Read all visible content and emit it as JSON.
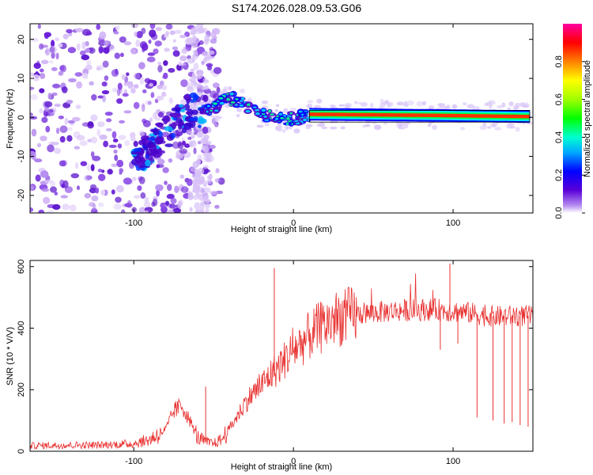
{
  "title": "S174.2026.028.09.53.G06",
  "chart_data": [
    {
      "type": "heatmap",
      "xlabel": "Height of straight line (km)",
      "ylabel": "Frequency (Hz)",
      "xlim": [
        -165,
        150
      ],
      "ylim": [
        -24.5,
        24
      ],
      "xticks": [
        -100,
        0,
        100
      ],
      "yticks": [
        -20,
        -10,
        0,
        10,
        20
      ],
      "colorbar": {
        "label": "Normalized spectral amplitude",
        "range": [
          0,
          1
        ],
        "ticks": [
          "0.0",
          "0.2",
          "0.4",
          "0.6",
          "0.8"
        ]
      },
      "ridge": [
        {
          "x": -95,
          "y": -10
        },
        {
          "x": -80,
          "y": -4
        },
        {
          "x": -65,
          "y": 2
        },
        {
          "x": -55,
          "y": 1
        },
        {
          "x": -40,
          "y": 5
        },
        {
          "x": -30,
          "y": 3
        },
        {
          "x": -20,
          "y": 1
        },
        {
          "x": -10,
          "y": 0
        },
        {
          "x": 0,
          "y": -0.5
        },
        {
          "x": 10,
          "y": 0.8
        },
        {
          "x": 90,
          "y": 0.5
        },
        {
          "x": 148,
          "y": 0.2
        }
      ]
    },
    {
      "type": "line",
      "xlabel": "Height of straight line (km)",
      "ylabel": "SNR (10 * V/V)",
      "xlim": [
        -165,
        150
      ],
      "ylim": [
        0,
        620
      ],
      "xticks": [
        -100,
        0,
        100
      ],
      "yticks": [
        0,
        200,
        400,
        600
      ],
      "color": "#e8302f",
      "series": [
        {
          "name": "SNR",
          "x": [
            -165,
            -140,
            -120,
            -100,
            -90,
            -80,
            -75,
            -70,
            -65,
            -60,
            -55,
            -50,
            -45,
            -40,
            -35,
            -30,
            -25,
            -20,
            -15,
            -10,
            -5,
            0,
            5,
            10,
            15,
            20,
            25,
            30,
            40,
            50,
            60,
            70,
            80,
            90,
            100,
            110,
            115,
            120,
            130,
            140,
            150
          ],
          "values": [
            18,
            20,
            20,
            25,
            38,
            70,
            130,
            150,
            100,
            45,
            30,
            25,
            38,
            75,
            115,
            160,
            190,
            215,
            245,
            270,
            300,
            330,
            350,
            375,
            395,
            410,
            428,
            435,
            445,
            450,
            455,
            458,
            460,
            460,
            455,
            450,
            445,
            440,
            438,
            440,
            440
          ]
        }
      ],
      "spikes": [
        {
          "x": -12,
          "y": 595
        },
        {
          "x": -55,
          "y": 210
        },
        {
          "x": 98,
          "y": 610
        }
      ],
      "dips": [
        {
          "x": 92,
          "y": 330
        },
        {
          "x": 103,
          "y": 350
        },
        {
          "x": 115,
          "y": 110
        },
        {
          "x": 125,
          "y": 100
        },
        {
          "x": 132,
          "y": 90
        },
        {
          "x": 137,
          "y": 95
        },
        {
          "x": 142,
          "y": 85
        },
        {
          "x": 147,
          "y": 80
        }
      ]
    }
  ]
}
